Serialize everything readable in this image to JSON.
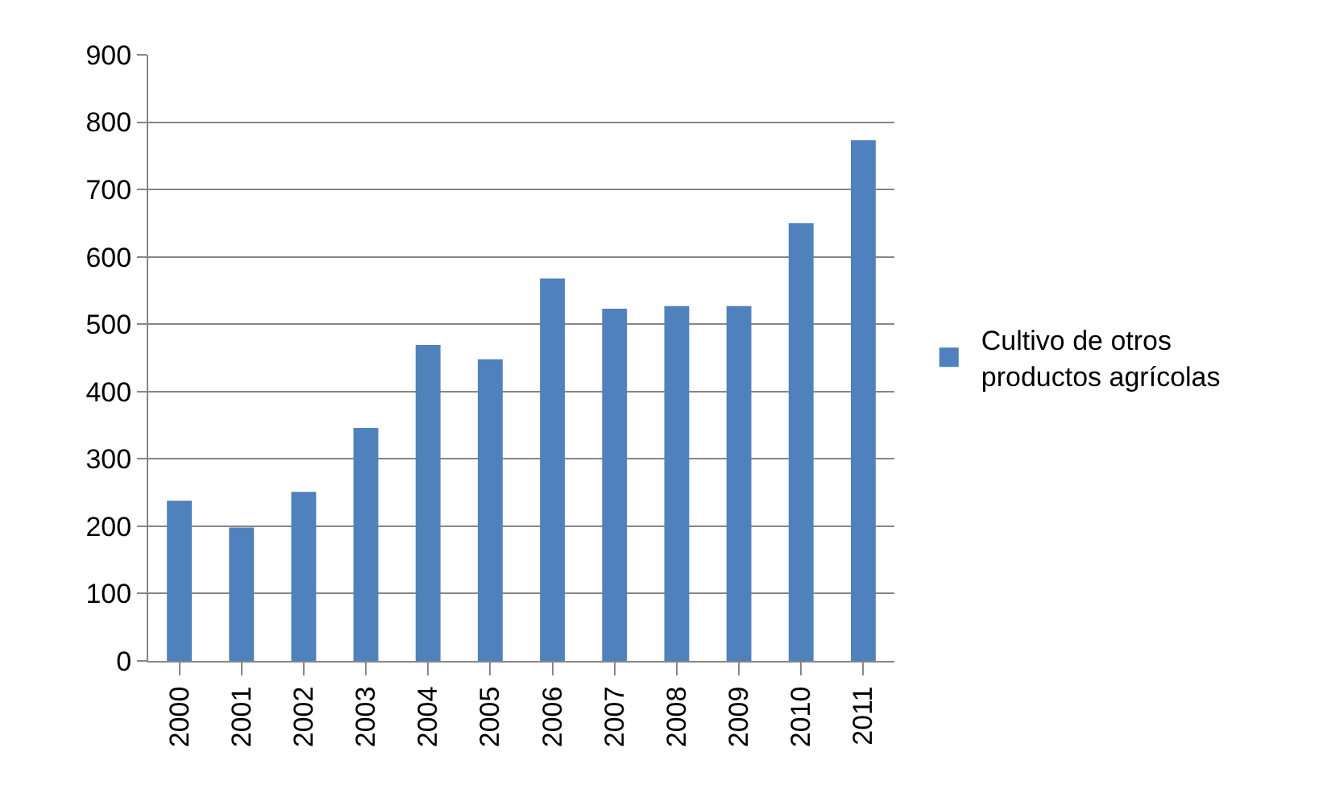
{
  "chart_data": {
    "type": "bar",
    "categories": [
      "2000",
      "2001",
      "2002",
      "2003",
      "2004",
      "2005",
      "2006",
      "2007",
      "2008",
      "2009",
      "2010",
      "2011"
    ],
    "series": [
      {
        "name": "Cultivo de otros productos agrícolas",
        "color": "#4f81bd",
        "values": [
          238,
          198,
          251,
          346,
          469,
          448,
          568,
          523,
          527,
          527,
          650,
          773
        ]
      }
    ],
    "ylim": [
      0,
      900
    ],
    "yticks": [
      0,
      100,
      200,
      300,
      400,
      500,
      600,
      700,
      800,
      900
    ],
    "grid": "y",
    "legend": "right"
  }
}
